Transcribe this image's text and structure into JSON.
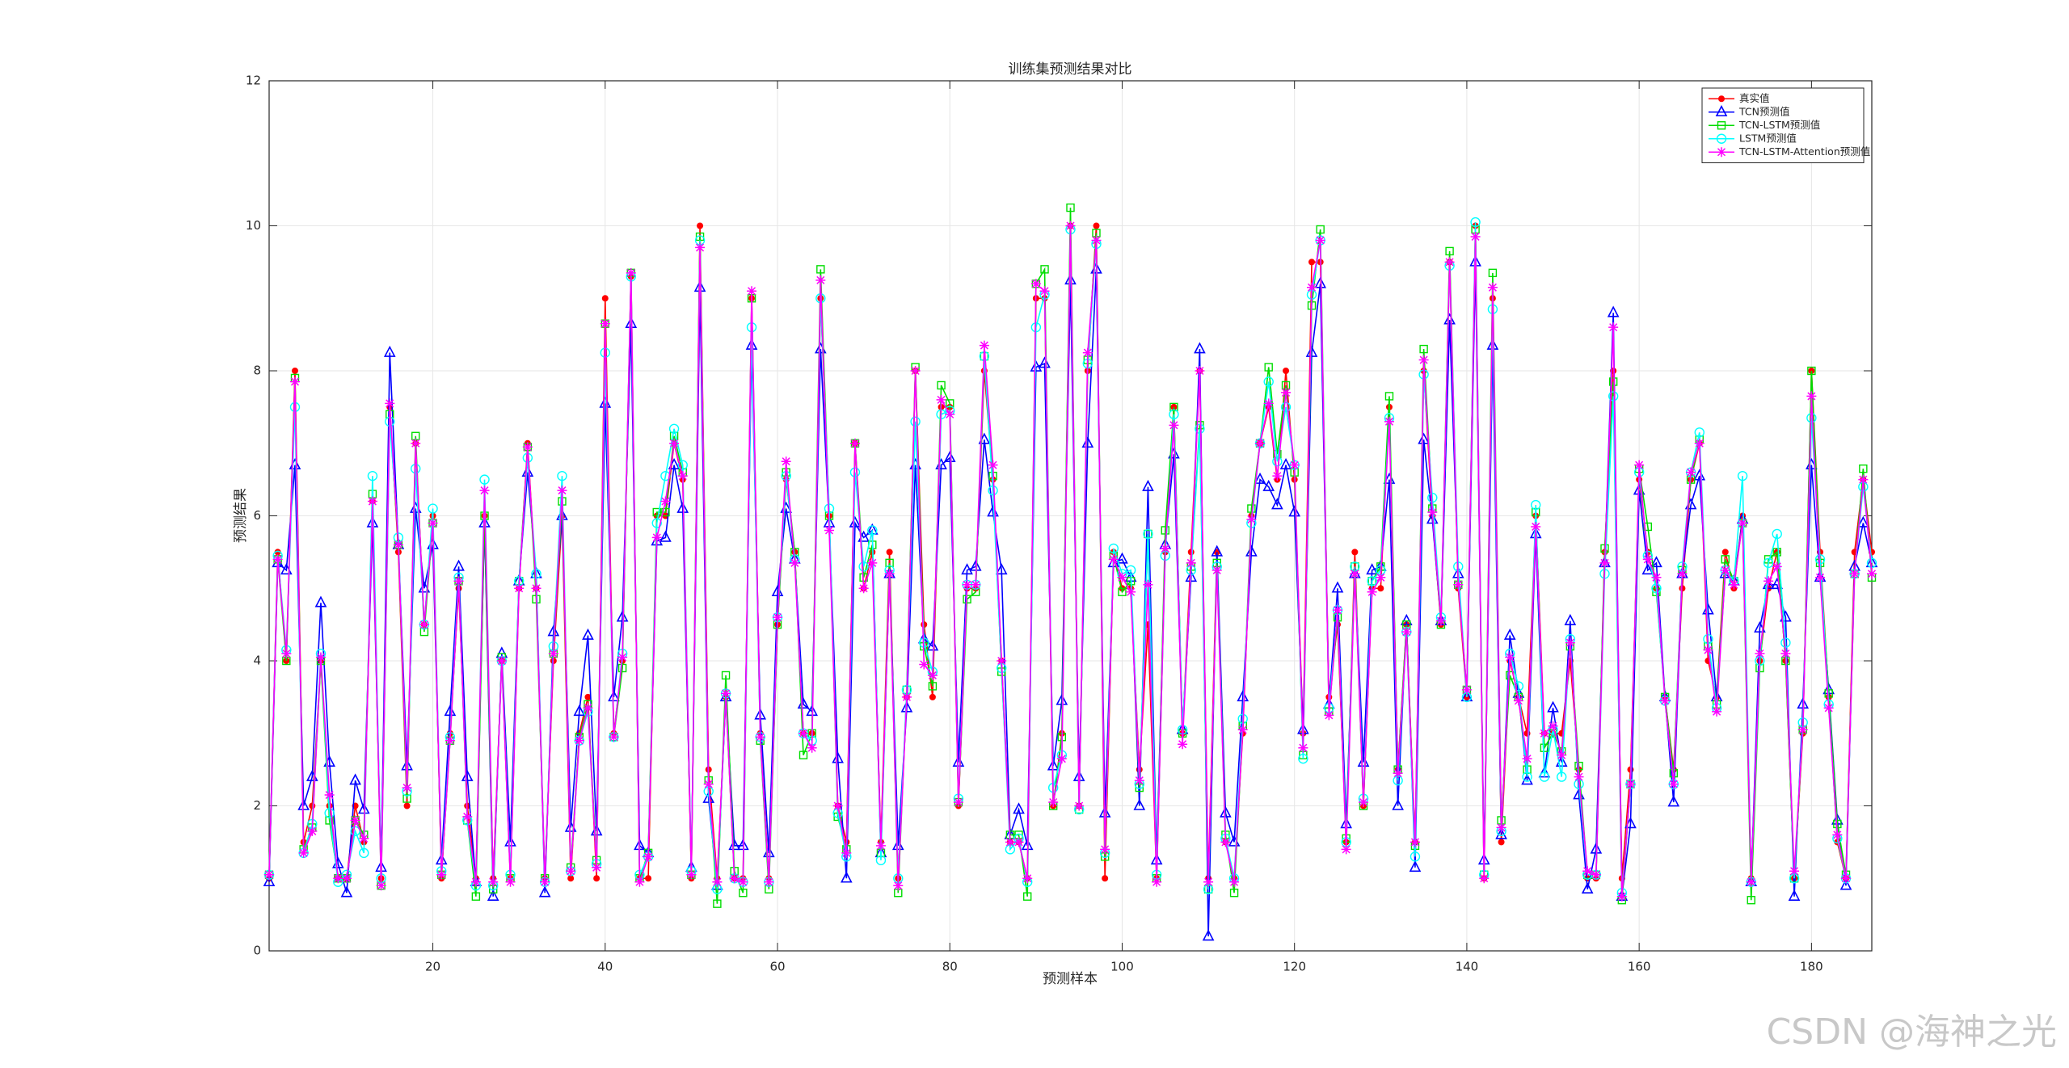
{
  "chart_data": {
    "type": "line",
    "title": "训练集预测结果对比",
    "x_label": "预测样本",
    "y_label": "预测结果",
    "watermark": "CSDN @海神之光",
    "x": [
      1,
      2,
      3,
      4,
      5,
      6,
      7,
      8,
      9,
      10,
      11,
      12,
      13,
      14,
      15,
      16,
      17,
      18,
      19,
      20,
      21,
      22,
      23,
      24,
      25,
      26,
      27,
      28,
      29,
      30,
      31,
      32,
      33,
      34,
      35,
      36,
      37,
      38,
      39,
      40,
      41,
      42,
      43,
      44,
      45,
      46,
      47,
      48,
      49,
      50,
      51,
      52,
      53,
      54,
      55,
      56,
      57,
      58,
      59,
      60,
      61,
      62,
      63,
      64,
      65,
      66,
      67,
      68,
      69,
      70,
      71,
      72,
      73,
      74,
      75,
      76,
      77,
      78,
      79,
      80,
      81,
      82,
      83,
      84,
      85,
      86,
      87,
      88,
      89,
      90,
      91,
      92,
      93,
      94,
      95,
      96,
      97,
      98,
      99,
      100,
      101,
      102,
      103,
      104,
      105,
      106,
      107,
      108,
      109,
      110,
      111,
      112,
      113,
      114,
      115,
      116,
      117,
      118,
      119,
      120,
      121,
      122,
      123,
      124,
      125,
      126,
      127,
      128,
      129,
      130,
      131,
      132,
      133,
      134,
      135,
      136,
      137,
      138,
      139,
      140,
      141,
      142,
      143,
      144,
      145,
      146,
      147,
      148,
      149,
      150,
      151,
      152,
      153,
      154,
      155,
      156,
      157,
      158,
      159,
      160,
      161,
      162,
      163,
      164,
      165,
      166,
      167,
      168,
      169,
      170,
      171,
      172,
      173,
      174,
      175,
      176,
      177,
      178,
      179,
      180,
      181,
      182,
      183,
      184,
      185,
      186,
      187
    ],
    "xlim": [
      1,
      187
    ],
    "xticks": [
      20,
      40,
      60,
      80,
      100,
      120,
      140,
      160,
      180
    ],
    "ylim": [
      0,
      12
    ],
    "yticks": [
      0,
      2,
      4,
      6,
      8,
      10,
      12
    ],
    "grid": true,
    "legend": "upper right",
    "series": [
      {
        "name": "真实值",
        "color": "#ff0000",
        "marker": "dot",
        "values": [
          1.0,
          5.5,
          4.0,
          8.0,
          1.5,
          2.0,
          4.0,
          2.0,
          1.0,
          1.0,
          2.0,
          1.5,
          6.2,
          1.0,
          7.5,
          5.5,
          2.0,
          7.0,
          4.5,
          6.0,
          1.0,
          3.0,
          5.0,
          2.0,
          1.0,
          6.0,
          1.0,
          4.0,
          1.0,
          5.0,
          7.0,
          5.0,
          1.0,
          4.0,
          6.0,
          1.0,
          3.0,
          3.5,
          1.0,
          9.0,
          3.0,
          4.0,
          9.3,
          1.0,
          1.0,
          6.0,
          6.0,
          7.0,
          6.5,
          1.0,
          10.0,
          2.5,
          1.0,
          3.5,
          1.0,
          1.0,
          9.0,
          3.0,
          1.0,
          4.5,
          6.5,
          5.5,
          3.0,
          3.0,
          9.0,
          6.0,
          2.0,
          1.5,
          7.0,
          5.0,
          5.5,
          1.5,
          5.5,
          1.0,
          3.5,
          8.0,
          4.5,
          3.5,
          7.5,
          7.5,
          2.0,
          5.0,
          5.0,
          8.0,
          6.5,
          4.0,
          1.5,
          1.5,
          1.0,
          9.0,
          9.0,
          2.0,
          3.0,
          10.0,
          2.0,
          8.0,
          10.0,
          1.0,
          5.5,
          5.0,
          5.0,
          2.5,
          4.5,
          1.0,
          5.5,
          7.5,
          3.0,
          5.5,
          8.0,
          1.0,
          5.5,
          1.5,
          1.0,
          3.0,
          6.0,
          7.0,
          7.5,
          6.5,
          8.0,
          6.5,
          3.0,
          9.5,
          9.5,
          3.5,
          4.5,
          1.5,
          5.5,
          2.0,
          5.0,
          5.0,
          7.5,
          2.5,
          4.5,
          1.5,
          8.0,
          6.0,
          4.5,
          9.5,
          5.0,
          3.5,
          10.0,
          1.0,
          9.0,
          1.5,
          4.0,
          3.5,
          3.0,
          6.0,
          3.0,
          3.0,
          3.0,
          4.0,
          2.5,
          1.0,
          1.0,
          5.5,
          8.0,
          1.0,
          2.5,
          6.5,
          5.5,
          5.0,
          3.5,
          2.5,
          5.0,
          6.5,
          7.0,
          4.0,
          3.5,
          5.5,
          5.0,
          6.0,
          1.0,
          4.0,
          5.0,
          5.5,
          4.0,
          1.0,
          3.0,
          8.0,
          5.5,
          3.5,
          1.5,
          1.0,
          5.5,
          6.5,
          5.5
        ]
      },
      {
        "name": "TCN预测值",
        "color": "#0000ff",
        "marker": "triangle",
        "values": [
          0.95,
          5.35,
          5.25,
          6.7,
          2.0,
          2.4,
          4.8,
          2.6,
          1.2,
          0.8,
          2.35,
          1.95,
          5.9,
          1.15,
          8.25,
          5.6,
          2.55,
          6.1,
          5.0,
          5.6,
          1.25,
          3.3,
          5.3,
          2.4,
          0.95,
          5.9,
          0.75,
          4.1,
          1.5,
          5.1,
          6.6,
          5.2,
          0.8,
          4.4,
          6.0,
          1.7,
          3.3,
          4.35,
          1.65,
          7.55,
          3.5,
          4.6,
          8.65,
          1.45,
          1.35,
          5.65,
          5.7,
          6.7,
          6.1,
          1.15,
          9.15,
          2.1,
          0.9,
          3.5,
          1.45,
          1.45,
          8.35,
          3.25,
          1.35,
          4.95,
          6.1,
          5.4,
          3.4,
          3.3,
          8.3,
          5.9,
          2.65,
          1.0,
          5.9,
          5.7,
          5.8,
          1.35,
          5.2,
          1.45,
          3.35,
          6.7,
          4.3,
          4.2,
          6.7,
          6.8,
          2.6,
          5.25,
          5.3,
          7.05,
          6.05,
          5.25,
          1.6,
          1.95,
          1.45,
          8.05,
          8.1,
          2.55,
          3.45,
          9.25,
          2.4,
          7.0,
          9.4,
          1.9,
          5.35,
          5.4,
          5.15,
          2.0,
          6.4,
          1.25,
          5.6,
          6.85,
          3.05,
          5.15,
          8.3,
          0.2,
          5.5,
          1.9,
          1.5,
          3.5,
          5.5,
          6.5,
          6.4,
          6.15,
          6.7,
          6.05,
          3.05,
          8.25,
          9.2,
          3.4,
          5.0,
          1.75,
          5.2,
          2.6,
          5.25,
          5.3,
          6.5,
          2.0,
          4.55,
          1.15,
          7.05,
          5.95,
          4.55,
          8.7,
          5.2,
          3.5,
          9.5,
          1.25,
          8.35,
          1.6,
          4.35,
          3.55,
          2.35,
          5.75,
          2.45,
          3.35,
          2.6,
          4.55,
          2.15,
          0.85,
          1.4,
          5.35,
          8.8,
          0.75,
          1.75,
          6.35,
          5.25,
          5.35,
          3.5,
          2.05,
          5.2,
          6.15,
          6.55,
          4.7,
          3.5,
          5.2,
          5.1,
          5.95,
          0.95,
          4.45,
          5.05,
          5.05,
          4.6,
          0.75,
          3.4,
          6.7,
          5.15,
          3.6,
          1.8,
          0.9,
          5.3,
          5.9,
          5.35
        ]
      },
      {
        "name": "TCN-LSTM预测值",
        "color": "#00dd00",
        "marker": "square",
        "values": [
          1.05,
          5.4,
          4.0,
          7.9,
          1.4,
          1.7,
          4.0,
          1.8,
          1.0,
          1.0,
          1.8,
          1.6,
          6.3,
          0.9,
          7.4,
          5.6,
          2.1,
          7.1,
          4.4,
          5.9,
          1.05,
          2.9,
          5.1,
          1.8,
          0.75,
          6.0,
          0.85,
          4.05,
          1.0,
          5.1,
          6.95,
          4.85,
          1.0,
          4.1,
          6.2,
          1.15,
          2.95,
          3.4,
          1.25,
          8.65,
          2.95,
          3.9,
          9.35,
          1.0,
          1.35,
          6.05,
          6.05,
          7.1,
          6.6,
          1.05,
          9.85,
          2.35,
          0.65,
          3.8,
          1.1,
          0.8,
          9.0,
          2.9,
          0.85,
          4.5,
          6.6,
          5.5,
          2.7,
          3.0,
          9.4,
          6.0,
          1.85,
          1.4,
          7.0,
          5.15,
          5.6,
          1.35,
          5.35,
          0.8,
          3.6,
          8.05,
          4.2,
          3.65,
          7.8,
          7.55,
          2.05,
          4.85,
          4.95,
          8.2,
          6.55,
          3.85,
          1.6,
          1.6,
          0.75,
          9.2,
          9.4,
          2.0,
          2.95,
          10.25,
          1.95,
          8.15,
          9.9,
          1.3,
          5.45,
          4.95,
          5.1,
          2.25,
          5.75,
          1.0,
          5.8,
          7.5,
          3.0,
          5.3,
          7.25,
          0.85,
          5.35,
          1.6,
          0.8,
          3.1,
          6.1,
          7.0,
          8.05,
          6.85,
          7.8,
          6.6,
          2.7,
          8.9,
          9.95,
          3.3,
          4.6,
          1.55,
          5.3,
          2.0,
          5.1,
          5.3,
          7.65,
          2.5,
          4.5,
          1.45,
          8.3,
          6.1,
          4.5,
          9.65,
          5.05,
          3.6,
          9.95,
          1.05,
          9.35,
          1.8,
          3.8,
          3.5,
          2.5,
          6.05,
          2.8,
          3.0,
          2.75,
          4.2,
          2.55,
          1.05,
          1.05,
          5.55,
          7.85,
          0.7,
          2.3,
          6.65,
          5.85,
          4.95,
          3.5,
          2.45,
          5.25,
          6.5,
          7.05,
          4.2,
          3.4,
          5.4,
          5.1,
          5.9,
          0.7,
          3.9,
          5.4,
          5.5,
          4.0,
          1.0,
          3.05,
          8.0,
          5.35,
          3.55,
          1.75,
          1.05,
          5.2,
          6.65,
          5.15
        ]
      },
      {
        "name": "LSTM预测值",
        "color": "#00ffff",
        "marker": "circle",
        "values": [
          1.05,
          5.45,
          4.15,
          7.5,
          1.35,
          1.75,
          4.1,
          1.9,
          0.95,
          1.05,
          1.65,
          1.35,
          6.55,
          1.0,
          7.3,
          5.7,
          2.2,
          6.65,
          4.5,
          6.1,
          1.1,
          2.95,
          5.15,
          1.8,
          0.9,
          6.5,
          0.9,
          4.0,
          1.05,
          5.1,
          6.8,
          5.2,
          0.95,
          4.2,
          6.55,
          1.1,
          2.9,
          3.3,
          1.2,
          8.25,
          2.95,
          4.1,
          9.3,
          1.05,
          1.3,
          5.9,
          6.55,
          7.2,
          6.7,
          1.1,
          9.8,
          2.2,
          0.85,
          3.55,
          1.0,
          0.95,
          8.6,
          2.95,
          0.95,
          4.6,
          6.55,
          5.4,
          3.0,
          2.9,
          9.0,
          6.1,
          1.9,
          1.3,
          6.6,
          5.3,
          5.8,
          1.25,
          5.25,
          1.0,
          3.6,
          7.3,
          4.25,
          3.85,
          7.4,
          7.45,
          2.1,
          5.05,
          5.05,
          8.2,
          6.35,
          3.9,
          1.4,
          1.55,
          0.95,
          8.6,
          9.05,
          2.25,
          2.7,
          9.95,
          1.95,
          8.1,
          9.75,
          1.35,
          5.55,
          5.2,
          5.25,
          2.3,
          5.75,
          1.05,
          5.45,
          7.4,
          3.05,
          5.25,
          7.2,
          0.85,
          5.3,
          1.55,
          1.0,
          3.2,
          5.9,
          7.0,
          7.85,
          6.75,
          7.5,
          6.7,
          2.65,
          9.05,
          9.8,
          3.35,
          4.7,
          1.5,
          5.3,
          2.1,
          5.1,
          5.25,
          7.35,
          2.35,
          4.4,
          1.3,
          7.95,
          6.25,
          4.6,
          9.45,
          5.3,
          3.5,
          10.05,
          1.05,
          8.85,
          1.65,
          4.1,
          3.65,
          2.4,
          6.15,
          2.4,
          3.05,
          2.4,
          4.3,
          2.3,
          1.05,
          1.05,
          5.2,
          7.65,
          0.8,
          2.3,
          6.6,
          5.45,
          5.0,
          3.45,
          2.3,
          5.3,
          6.6,
          7.15,
          4.3,
          3.35,
          5.25,
          5.1,
          6.55,
          0.95,
          4.0,
          5.35,
          5.75,
          4.25,
          1.0,
          3.15,
          7.35,
          5.4,
          3.4,
          1.55,
          1.0,
          5.2,
          6.4,
          5.35
        ]
      },
      {
        "name": "TCN-LSTM-Attention预测值",
        "color": "#ff00ff",
        "marker": "star",
        "values": [
          1.05,
          5.4,
          4.1,
          7.85,
          1.35,
          1.65,
          4.05,
          2.15,
          1.0,
          1.0,
          1.8,
          1.55,
          6.2,
          0.9,
          7.55,
          5.6,
          2.25,
          7.0,
          4.5,
          5.9,
          1.05,
          2.9,
          5.1,
          1.85,
          0.95,
          6.35,
          0.95,
          4.0,
          0.95,
          5.0,
          6.95,
          5.0,
          0.95,
          4.1,
          6.35,
          1.1,
          2.9,
          3.35,
          1.15,
          8.65,
          2.95,
          4.05,
          9.35,
          0.95,
          1.3,
          5.7,
          6.2,
          7.0,
          6.55,
          1.05,
          9.7,
          2.3,
          0.95,
          3.55,
          1.0,
          0.95,
          9.1,
          2.95,
          0.95,
          4.6,
          6.75,
          5.35,
          3.0,
          2.8,
          9.25,
          5.8,
          2.0,
          1.35,
          7.0,
          5.0,
          5.35,
          1.45,
          5.2,
          0.9,
          3.5,
          8.0,
          3.95,
          3.8,
          7.6,
          7.4,
          2.05,
          5.05,
          5.05,
          8.35,
          6.7,
          4.0,
          1.5,
          1.5,
          1.0,
          9.2,
          9.1,
          2.05,
          2.65,
          10.0,
          2.0,
          8.25,
          9.8,
          1.4,
          5.4,
          5.15,
          4.95,
          2.35,
          5.05,
          0.95,
          5.55,
          7.25,
          2.85,
          5.35,
          8.0,
          0.95,
          5.25,
          1.5,
          0.95,
          3.05,
          5.95,
          7.0,
          7.55,
          6.55,
          7.7,
          6.7,
          2.8,
          9.15,
          9.8,
          3.25,
          4.7,
          1.4,
          5.2,
          2.05,
          4.95,
          5.15,
          7.3,
          2.45,
          4.4,
          1.5,
          8.15,
          6.05,
          4.55,
          9.5,
          5.05,
          3.6,
          9.85,
          1.0,
          9.15,
          1.7,
          4.05,
          3.45,
          2.65,
          5.85,
          3.0,
          3.1,
          2.7,
          4.25,
          2.4,
          1.1,
          1.05,
          5.35,
          8.6,
          0.75,
          2.3,
          6.7,
          5.4,
          5.15,
          3.45,
          2.3,
          5.2,
          6.6,
          7.0,
          4.15,
          3.3,
          5.25,
          5.05,
          5.9,
          0.95,
          4.1,
          5.1,
          5.3,
          4.1,
          1.1,
          3.05,
          7.65,
          5.15,
          3.35,
          1.6,
          1.0,
          5.2,
          6.5,
          5.2
        ]
      }
    ]
  }
}
